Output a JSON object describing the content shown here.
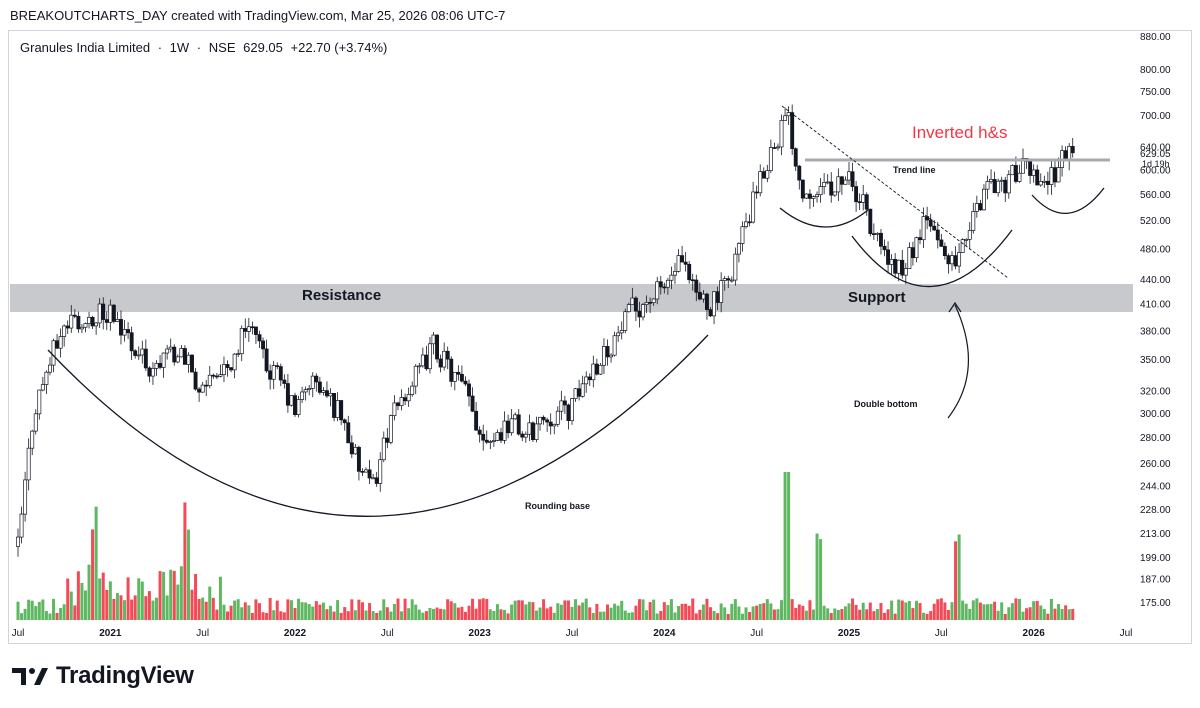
{
  "credit": "BREAKOUTCHARTS_DAY created with TradingView.com, Mar 25, 2026 08:06 UTC-7",
  "symbol": {
    "name": "Granules India Limited",
    "interval": "1W",
    "exchange": "NSE",
    "price": "629.05",
    "change": "+22.70 (+3.74%)",
    "sep": "·"
  },
  "price_badge": {
    "value": "629.05",
    "countdown": "1d 19h"
  },
  "brand": "TradingView",
  "colors": {
    "up": "#26a69a",
    "vol_up": "#4caf50",
    "vol_down": "#f23645",
    "accent_red": "#f23645",
    "band": "#c8c9cc"
  },
  "chart_data": {
    "type": "candlestick",
    "title": "Granules India Limited · 1W · NSE",
    "y_scale": "log",
    "ylim": [
      170,
      900
    ],
    "y_ticks": [
      "880.00",
      "800.00",
      "750.00",
      "700.00",
      "640.00",
      "600.00",
      "560.00",
      "520.00",
      "480.00",
      "440.00",
      "410.00",
      "380.00",
      "350.00",
      "320.00",
      "300.00",
      "280.00",
      "260.00",
      "244.00",
      "228.00",
      "213.00",
      "199.00",
      "187.00",
      "175.00"
    ],
    "x_ticks": [
      "Jul",
      "2021",
      "Jul",
      "2022",
      "Jul",
      "2023",
      "Jul",
      "2024",
      "Jul",
      "2025",
      "Jul",
      "2026",
      "Jul"
    ],
    "close_path": [
      [
        "2020-07",
        205
      ],
      [
        "2020-08",
        300
      ],
      [
        "2020-09",
        345
      ],
      [
        "2020-10",
        385
      ],
      [
        "2020-11",
        395
      ],
      [
        "2021-01",
        400
      ],
      [
        "2021-02",
        375
      ],
      [
        "2021-03",
        350
      ],
      [
        "2021-04",
        340
      ],
      [
        "2021-05",
        360
      ],
      [
        "2021-06",
        345
      ],
      [
        "2021-07",
        320
      ],
      [
        "2021-08",
        330
      ],
      [
        "2021-09",
        350
      ],
      [
        "2021-10",
        395
      ],
      [
        "2021-11",
        345
      ],
      [
        "2021-12",
        330
      ],
      [
        "2022-01",
        300
      ],
      [
        "2022-02",
        330
      ],
      [
        "2022-03",
        315
      ],
      [
        "2022-04",
        300
      ],
      [
        "2022-05",
        260
      ],
      [
        "2022-06",
        240
      ],
      [
        "2022-07",
        285
      ],
      [
        "2022-08",
        315
      ],
      [
        "2022-09",
        335
      ],
      [
        "2022-10",
        365
      ],
      [
        "2022-11",
        340
      ],
      [
        "2022-12",
        320
      ],
      [
        "2023-01",
        285
      ],
      [
        "2023-02",
        280
      ],
      [
        "2023-03",
        295
      ],
      [
        "2023-04",
        280
      ],
      [
        "2023-05",
        295
      ],
      [
        "2023-06",
        300
      ],
      [
        "2023-07",
        305
      ],
      [
        "2023-08",
        335
      ],
      [
        "2023-09",
        355
      ],
      [
        "2023-10",
        375
      ],
      [
        "2023-11",
        405
      ],
      [
        "2023-12",
        415
      ],
      [
        "2024-01",
        430
      ],
      [
        "2024-02",
        460
      ],
      [
        "2024-03",
        420
      ],
      [
        "2024-04",
        410
      ],
      [
        "2024-05",
        430
      ],
      [
        "2024-06",
        495
      ],
      [
        "2024-07",
        560
      ],
      [
        "2024-08",
        640
      ],
      [
        "2024-09",
        700
      ],
      [
        "2024-10",
        560
      ],
      [
        "2024-11",
        580
      ],
      [
        "2024-12",
        575
      ],
      [
        "2025-01",
        585
      ],
      [
        "2025-02",
        540
      ],
      [
        "2025-03",
        480
      ],
      [
        "2025-04",
        450
      ],
      [
        "2025-05",
        470
      ],
      [
        "2025-06",
        520
      ],
      [
        "2025-07",
        480
      ],
      [
        "2025-08",
        450
      ],
      [
        "2025-09",
        520
      ],
      [
        "2025-10",
        580
      ],
      [
        "2025-11",
        575
      ],
      [
        "2025-12",
        600
      ],
      [
        "2026-01",
        595
      ],
      [
        "2026-02",
        580
      ],
      [
        "2026-03",
        629.05
      ]
    ],
    "last_price": 629.05,
    "annotations": {
      "resistance": "Resistance",
      "support": "Support",
      "rounding_base": "Rounding base",
      "double_bottom": "Double bottom",
      "trend_line": "Trend line",
      "inverted_hs": "Inverted h&s"
    },
    "zones": {
      "resistance_support_band": [
        400,
        435
      ],
      "neckline": 615
    },
    "volume": {
      "spikes": [
        [
          "2020-12",
          "high"
        ],
        [
          "2021-06",
          "high"
        ],
        [
          "2024-09",
          "highest"
        ],
        [
          "2024-11",
          "high"
        ],
        [
          "2025-08",
          "high"
        ]
      ]
    }
  }
}
